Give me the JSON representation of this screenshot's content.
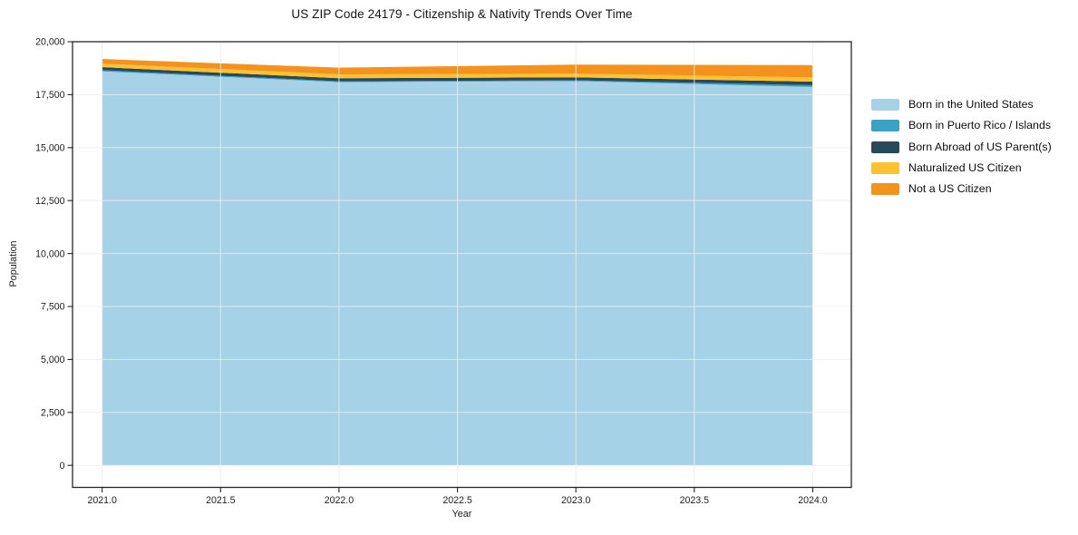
{
  "page": {
    "background": "#ffffff"
  },
  "chart_data": {
    "type": "area",
    "stacked": true,
    "title": "US ZIP Code 24179 - Citizenship & Nativity Trends Over Time",
    "xlabel": "Year",
    "ylabel": "Population",
    "x": [
      2021,
      2022,
      2023,
      2024
    ],
    "series": [
      {
        "name": "Born in the United States",
        "color": "#a6d2e7",
        "values": [
          18600,
          18090,
          18140,
          17860
        ]
      },
      {
        "name": "Born in Puerto Rico / Islands",
        "color": "#3aa3c3",
        "values": [
          55,
          40,
          40,
          85
        ]
      },
      {
        "name": "Born Abroad of US Parent(s)",
        "color": "#29485a",
        "values": [
          145,
          145,
          140,
          170
        ]
      },
      {
        "name": "Naturalized US Citizen",
        "color": "#fdc22f",
        "values": [
          160,
          185,
          170,
          200
        ]
      },
      {
        "name": "Not a US Citizen",
        "color": "#f5921e",
        "values": [
          225,
          315,
          430,
          580
        ]
      }
    ],
    "totals": [
      19185,
      18775,
      18920,
      18895
    ],
    "xticks": [
      {
        "v": 2021.0,
        "label": "2021.0"
      },
      {
        "v": 2021.5,
        "label": "2021.5"
      },
      {
        "v": 2022.0,
        "label": "2022.0"
      },
      {
        "v": 2022.5,
        "label": "2022.5"
      },
      {
        "v": 2023.0,
        "label": "2023.0"
      },
      {
        "v": 2023.5,
        "label": "2023.5"
      },
      {
        "v": 2024.0,
        "label": "2024.0"
      }
    ],
    "yticks": [
      {
        "v": 0,
        "label": "0"
      },
      {
        "v": 2500,
        "label": "2,500"
      },
      {
        "v": 5000,
        "label": "5,000"
      },
      {
        "v": 7500,
        "label": "7,500"
      },
      {
        "v": 10000,
        "label": "10,000"
      },
      {
        "v": 12500,
        "label": "12,500"
      },
      {
        "v": 15000,
        "label": "15,000"
      },
      {
        "v": 17500,
        "label": "17,500"
      },
      {
        "v": 20000,
        "label": "20,000"
      }
    ],
    "xlim": [
      2020.875,
      2024.163
    ],
    "ylim": [
      -1040,
      20000
    ],
    "grid": true,
    "grid_color": "#ededed",
    "axis_color": "#262626",
    "tick_label_color": "#1c1c1c",
    "legend_position": "right"
  }
}
